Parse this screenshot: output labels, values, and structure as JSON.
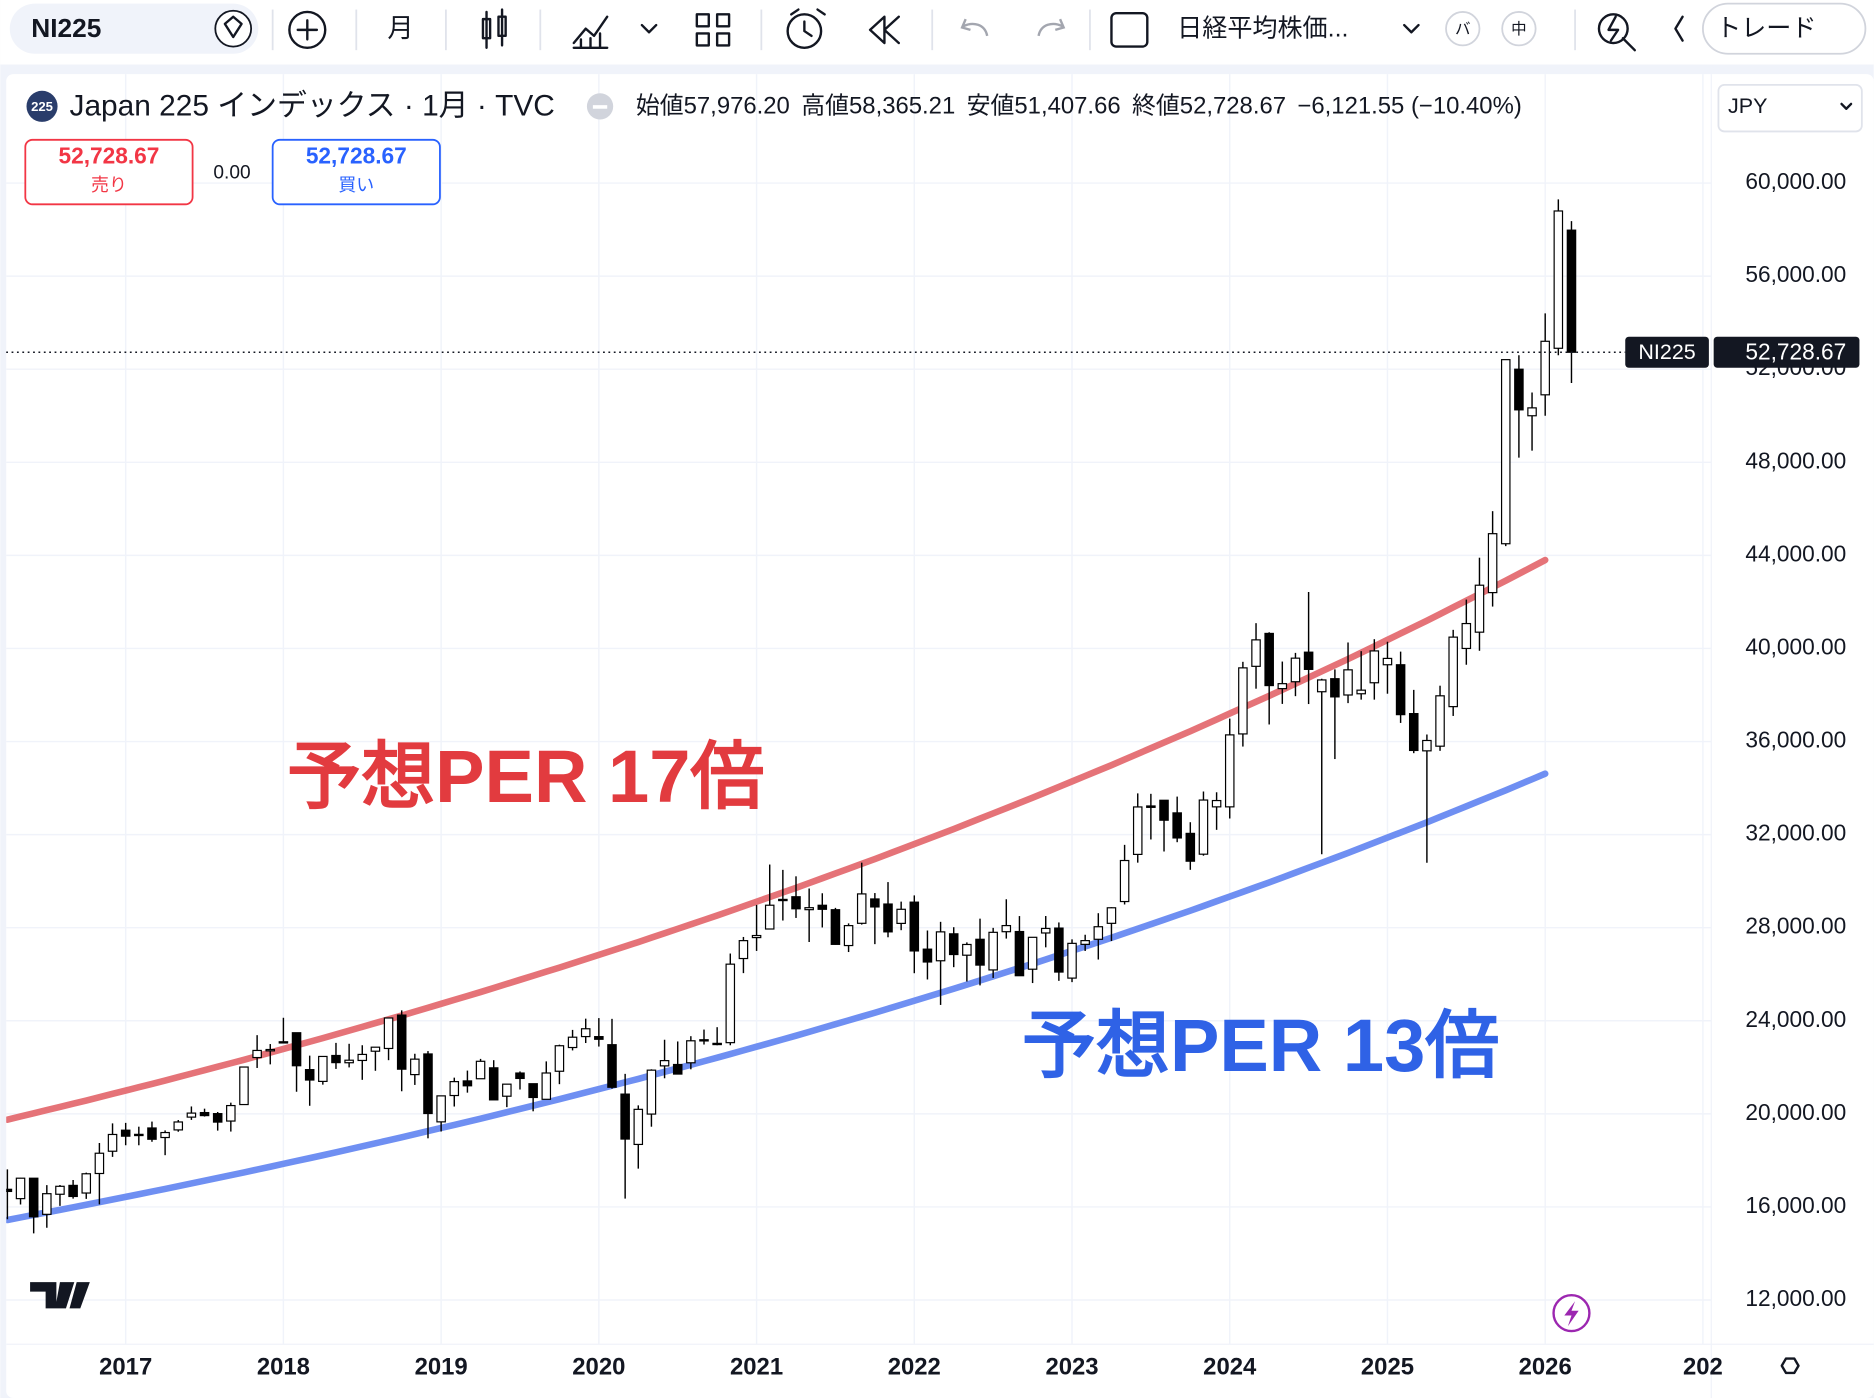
{
  "toolbar": {
    "symbol": "NI225",
    "interval": "月",
    "chart_name": "日経平均株価...",
    "badges": [
      "バ",
      "中"
    ],
    "trade": "トレード"
  },
  "header": {
    "badge": "225",
    "title": "Japan 225 インデックス · 1月 · TVC",
    "ohlc": [
      {
        "label": "始値",
        "value": "57,976.20"
      },
      {
        "label": "高値",
        "value": "58,365.21"
      },
      {
        "label": "安値",
        "value": "51,407.66"
      },
      {
        "label": "終値",
        "value": "52,728.67"
      }
    ],
    "change": "−6,121.55 (−10.40%)",
    "sell": {
      "price": "52,728.67",
      "label": "売り"
    },
    "spread": "0.00",
    "buy": {
      "price": "52,728.67",
      "label": "買い"
    },
    "currency": "JPY"
  },
  "chart_data": {
    "type": "candlestick",
    "categories": [
      null,
      null,
      null,
      null,
      null,
      null,
      null,
      null,
      null,
      "2017",
      null,
      null,
      null,
      null,
      null,
      null,
      null,
      null,
      null,
      null,
      null,
      "2018",
      null,
      null,
      null,
      null,
      null,
      null,
      null,
      null,
      null,
      null,
      null,
      "2019",
      null,
      null,
      null,
      null,
      null,
      null,
      null,
      null,
      null,
      null,
      null,
      "2020",
      null,
      null,
      null,
      null,
      null,
      null,
      null,
      null,
      null,
      null,
      null,
      "2021",
      null,
      null,
      null,
      null,
      null,
      null,
      null,
      null,
      null,
      null,
      null,
      "2022",
      null,
      null,
      null,
      null,
      null,
      null,
      null,
      null,
      null,
      null,
      null,
      "2023",
      null,
      null,
      null,
      null,
      null,
      null,
      null,
      null,
      null,
      null,
      null,
      "2024",
      null,
      null,
      null,
      null,
      null,
      null,
      null,
      null,
      null,
      null,
      null,
      "2025",
      null,
      null,
      null,
      null,
      null,
      null,
      null,
      null,
      null,
      null,
      null,
      "2026",
      null,
      null,
      null,
      null,
      null,
      null,
      null,
      null,
      null,
      null,
      null,
      "202"
    ],
    "open": [
      16758,
      16357,
      17234,
      15682,
      16545,
      16926,
      16598,
      17437,
      18394,
      19298,
      19070,
      19393,
      18983,
      19310,
      19860,
      20055,
      20010,
      19691,
      20400,
      22420,
      22707,
      23073,
      23486,
      21901,
      21395,
      22508,
      22197,
      22295,
      22692,
      22810,
      24245,
      21687,
      22574,
      19656,
      20788,
      21416,
      21509,
      21978,
      20758,
      21754,
      21295,
      20625,
      21831,
      22851,
      23321,
      23319,
      22972,
      20849,
      18686,
      19991,
      22062,
      22121,
      22195,
      23138,
      23029,
      23060,
      26675,
      27575,
      27944,
      29216,
      29330,
      28775,
      28964,
      28773,
      27233,
      28189,
      29235,
      29017,
      28185,
      29098,
      27078,
      26579,
      27737,
      26818,
      27502,
      26185,
      27828,
      27835,
      26216,
      27773,
      27983,
      25834,
      27284,
      27502,
      28188,
      29124,
      31150,
      33231,
      33476,
      32934,
      32053,
      31159,
      33193,
      33193,
      36327,
      39232,
      40646,
      38274,
      38570,
      39840,
      38140,
      38700,
      38000,
      38053,
      38526,
      39300,
      39300,
      37200,
      35600,
      35800,
      37500,
      40000,
      40700,
      42400,
      44500,
      52000,
      50000,
      50900,
      52900,
      57976.2,
      null,
      null,
      null,
      null,
      null,
      null,
      null,
      null,
      null,
      null
    ],
    "high": [
      17613,
      17251,
      17235,
      16938,
      16943,
      17159,
      17473,
      18746,
      19592,
      19615,
      19449,
      19668,
      19289,
      19736,
      20318,
      20223,
      20080,
      20481,
      22012,
      23382,
      23000,
      24129,
      23486,
      22502,
      22467,
      23050,
      23011,
      22949,
      22869,
      24120,
      24448,
      22583,
      22698,
      20773,
      21556,
      21860,
      22362,
      22307,
      21286,
      21823,
      21295,
      22255,
      22974,
      23608,
      24091,
      24115,
      24083,
      21719,
      20365,
      21916,
      23185,
      23111,
      23338,
      23622,
      23725,
      26890,
      27602,
      28979,
      30714,
      30485,
      30208,
      29685,
      29480,
      28852,
      28186,
      30795,
      29489,
      29960,
      29121,
      29388,
      27880,
      28252,
      28021,
      27369,
      28389,
      27993,
      29222,
      28500,
      27587,
      28502,
      28226,
      27500,
      27697,
      28623,
      28879,
      31560,
      33772,
      33753,
      33488,
      33634,
      32533,
      33853,
      33820,
      36984,
      39426,
      41087,
      40697,
      39437,
      39810,
      42426,
      38700,
      39100,
      40257,
      39884,
      40398,
      40288,
      39864,
      38220,
      36300,
      38400,
      40800,
      42100,
      43900,
      45900,
      52400,
      52600,
      51000,
      54400,
      59300,
      58365.21,
      null,
      null,
      null,
      null,
      null,
      null,
      null,
      null,
      null,
      null
    ],
    "low": [
      15471,
      16106,
      14864,
      15107,
      16044,
      16359,
      16344,
      16111,
      18153,
      18650,
      18650,
      18800,
      18224,
      19232,
      19740,
      19883,
      19280,
      19239,
      20400,
      21972,
      22127,
      23073,
      20950,
      20347,
      21255,
      21931,
      21996,
      21462,
      21851,
      22307,
      20971,
      21243,
      18949,
      19241,
      20315,
      20911,
      21509,
      20601,
      20289,
      21046,
      20110,
      20625,
      21276,
      22726,
      23044,
      22892,
      21083,
      16358,
      17646,
      19448,
      21529,
      21710,
      21915,
      22979,
      22948,
      22948,
      26048,
      27002,
      27944,
      28308,
      28419,
      27385,
      28010,
      27273,
      26954,
      28134,
      27293,
      27588,
      27893,
      26044,
      25775,
      24681,
      26304,
      25688,
      25520,
      25841,
      27532,
      25935,
      25621,
      27156,
      25716,
      25661,
      27000,
      26632,
      27427,
      28998,
      30795,
      31791,
      31275,
      31674,
      30487,
      31094,
      32205,
      32693,
      35784,
      38271,
      36733,
      37617,
      37950,
      37611,
      31156,
      35247,
      37651,
      37800,
      37800,
      38055,
      36800,
      35500,
      30792,
      35600,
      37100,
      39300,
      39900,
      41800,
      44400,
      48200,
      48500,
      50000,
      52600,
      51407.66,
      null,
      null,
      null,
      null,
      null,
      null,
      null,
      null,
      null,
      null
    ],
    "close": [
      16666,
      17235,
      15576,
      16569,
      16887,
      16450,
      17425,
      18308,
      19114,
      19041,
      19119,
      18909,
      19197,
      19651,
      20033,
      19925,
      19646,
      20356,
      22012,
      22725,
      22765,
      23098,
      22068,
      21454,
      22467,
      22202,
      22305,
      22554,
      22865,
      24120,
      21920,
      22351,
      20015,
      20773,
      21385,
      21206,
      22259,
      20601,
      21276,
      21522,
      20704,
      21756,
      22927,
      23294,
      23657,
      23205,
      21143,
      18917,
      20194,
      21878,
      22288,
      21710,
      23140,
      23185,
      22977,
      26433,
      27444,
      27663,
      28966,
      29179,
      28813,
      28860,
      28791,
      27284,
      28089,
      29452,
      28892,
      27821,
      28791,
      27001,
      26526,
      27821,
      26847,
      27279,
      26393,
      27801,
      28091,
      25937,
      27587,
      27968,
      26094,
      27327,
      27445,
      28041,
      28856,
      30887,
      33189,
      33172,
      32619,
      31857,
      30858,
      33486,
      33464,
      36286,
      39166,
      40369,
      38405,
      38487,
      39583,
      39101,
      38647,
      37919,
      39081,
      38208,
      39894,
      39572,
      37156,
      35617,
      36045,
      37965,
      40487,
      41070,
      42718,
      44932,
      52411,
      50254,
      50339,
      53200,
      58800,
      52728.67,
      null,
      null,
      null,
      null,
      null,
      null,
      null,
      null,
      null,
      null
    ],
    "up_color": "#ffffff",
    "down_color": "#000000",
    "wick_color": "#000000",
    "overlays": [
      {
        "label": "予想PER 17倍",
        "color": "#e57378",
        "label_color": "#e23b3f",
        "values": [
          19750,
          19887,
          20024,
          20162,
          20299,
          20436,
          20573,
          20716,
          20859,
          21002,
          21145,
          21288,
          21431,
          21580,
          21729,
          21878,
          22026,
          22175,
          22324,
          22479,
          22634,
          22789,
          22944,
          23099,
          23254,
          23416,
          23577,
          23739,
          23901,
          24062,
          24224,
          24392,
          24561,
          24729,
          24897,
          25066,
          25234,
          25409,
          25585,
          25760,
          25935,
          26111,
          26286,
          26469,
          26651,
          26834,
          27016,
          27199,
          27381,
          27571,
          27762,
          27952,
          28142,
          28333,
          28523,
          28721,
          28919,
          29117,
          29316,
          29514,
          29712,
          29918,
          30125,
          30331,
          30537,
          30744,
          30950,
          31165,
          31380,
          31596,
          31811,
          32026,
          32241,
          32465,
          32689,
          32913,
          33137,
          33361,
          33585,
          33818,
          34052,
          34285,
          34518,
          34752,
          34985,
          35228,
          35471,
          35714,
          35957,
          36200,
          36443,
          36696,
          36949,
          37203,
          37456,
          37709,
          37962,
          38226,
          38490,
          38753,
          39017,
          39281,
          39545,
          39820,
          40094,
          40369,
          40644,
          40918,
          41193,
          41479,
          41766,
          42052,
          42338,
          42625,
          42911,
          43207,
          43503,
          43799,
          null,
          null,
          null,
          null,
          null,
          null,
          null,
          null,
          null,
          null,
          null,
          null
        ]
      },
      {
        "label": "予想PER 13倍",
        "color": "#6f8ff2",
        "label_color": "#2f62e6",
        "values": [
          15440,
          15549,
          15658,
          15766,
          15875,
          15984,
          16093,
          16206,
          16320,
          16433,
          16546,
          16660,
          16773,
          16891,
          17009,
          17127,
          17246,
          17364,
          17482,
          17605,
          17728,
          17852,
          17975,
          18098,
          18221,
          18349,
          18478,
          18606,
          18734,
          18863,
          18991,
          19125,
          19259,
          19393,
          19526,
          19660,
          19794,
          19934,
          20073,
          20213,
          20352,
          20492,
          20631,
          20776,
          20922,
          21067,
          21212,
          21358,
          21503,
          21655,
          21806,
          21958,
          22109,
          22261,
          22412,
          22570,
          22728,
          22886,
          23043,
          23201,
          23359,
          23524,
          23688,
          23853,
          24017,
          24182,
          24346,
          24518,
          24689,
          24861,
          25032,
          25204,
          25375,
          25554,
          25733,
          25911,
          26090,
          26269,
          26448,
          26634,
          26821,
          27007,
          27193,
          27380,
          27566,
          27760,
          27954,
          28149,
          28343,
          28537,
          28731,
          28933,
          29136,
          29338,
          29540,
          29743,
          29945,
          30156,
          30367,
          30578,
          30789,
          31000,
          31211,
          31431,
          31651,
          31871,
          32090,
          32310,
          32530,
          32759,
          32988,
          33218,
          33447,
          33676,
          33905,
          34142,
          34380,
          34617,
          null,
          null,
          null,
          null,
          null,
          null,
          null,
          null,
          null,
          null,
          null,
          null
        ]
      }
    ],
    "ylim": [
      10100,
      64683
    ],
    "yticks": [
      {
        "value": 12000,
        "label": "12,000.00"
      },
      {
        "value": 16000,
        "label": "16,000.00"
      },
      {
        "value": 20000,
        "label": "20,000.00"
      },
      {
        "value": 24000,
        "label": "24,000.00"
      },
      {
        "value": 28000,
        "label": "28,000.00"
      },
      {
        "value": 32000,
        "label": "32,000.00"
      },
      {
        "value": 36000,
        "label": "36,000.00"
      },
      {
        "value": 40000,
        "label": "40,000.00"
      },
      {
        "value": 44000,
        "label": "44,000.00"
      },
      {
        "value": 48000,
        "label": "48,000.00"
      },
      {
        "value": 52000,
        "label": "52,000.00"
      },
      {
        "value": 56000,
        "label": "56,000.00"
      },
      {
        "value": 60000,
        "label": "60,000.00"
      }
    ],
    "grid": true,
    "last_price": {
      "value": 52728.67,
      "label": "52,728.67"
    }
  }
}
